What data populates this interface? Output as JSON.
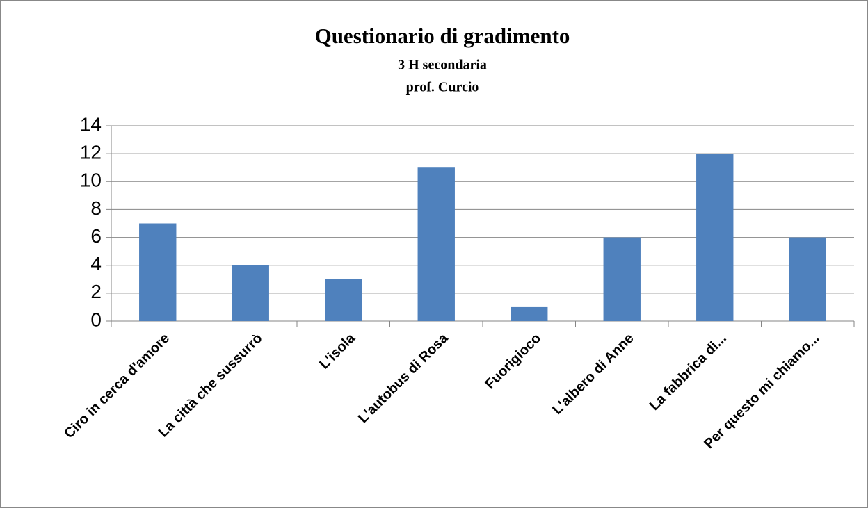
{
  "chart_data": {
    "type": "bar",
    "title": "Questionario di gradimento",
    "subtitle": [
      "3 H secondaria",
      "prof. Curcio"
    ],
    "categories": [
      "Ciro in cerca d'amore",
      "La città che sussurrò",
      "L'isola",
      "L'autobus di Rosa",
      "Fuorigioco",
      "L'albero di Anne",
      "La fabbrica di...",
      "Per questo mi chiamo..."
    ],
    "values": [
      7,
      4,
      3,
      11,
      1,
      6,
      12,
      6
    ],
    "color": "#4f81bd",
    "ylim": [
      0,
      14
    ],
    "yticks": [
      0,
      2,
      4,
      6,
      8,
      10,
      12,
      14
    ],
    "grid": true
  }
}
